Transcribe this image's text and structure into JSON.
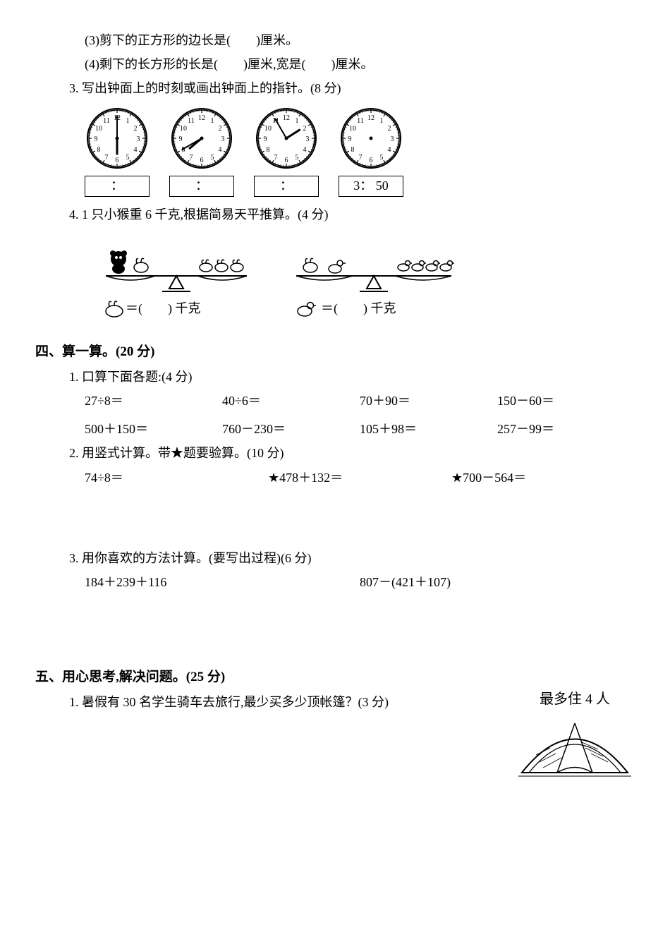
{
  "q3_3": "(3)剪下的正方形的边长是(　　)厘米。",
  "q3_4": "(4)剩下的长方形的长是(　　)厘米,宽是(　　)厘米。",
  "q3_head": "3. 写出钟面上的时刻或画出钟面上的指针。(8 分)",
  "clocks": [
    {
      "hour": 6,
      "minute": 0,
      "drawHands": true,
      "box": "："
    },
    {
      "hour": 7,
      "minute": 40,
      "drawHands": true,
      "box": "："
    },
    {
      "hour": 1,
      "minute": 55,
      "drawHands": true,
      "box": "："
    },
    {
      "hour": 3,
      "minute": 50,
      "drawHands": false,
      "box": "3： 50"
    }
  ],
  "q4_head": "4. 1 只小猴重 6 千克,根据简易天平推算。(4 分)",
  "balance": {
    "ans1_prefix": "🐰＝(　　) 千克",
    "ans2_prefix": "🦆＝(　　) 千克"
  },
  "sec4_head": "四、算一算。(20 分)",
  "s4q1_head": "1. 口算下面各题:(4 分)",
  "s4q1_items": [
    "27÷8＝",
    "40÷6＝",
    "70＋90＝",
    "150－60＝",
    "500＋150＝",
    "760－230＝",
    "105＋98＝",
    "257－99＝"
  ],
  "s4q2_head": "2. 用竖式计算。带★题要验算。(10 分)",
  "s4q2_items": [
    "74÷8＝",
    "★478＋132＝",
    "★700－564＝"
  ],
  "s4q3_head": "3. 用你喜欢的方法计算。(要写出过程)(6 分)",
  "s4q3_items": [
    "184＋239＋116",
    "807－(421＋107)"
  ],
  "sec5_head": "五、用心思考,解决问题。(25 分)",
  "s5q1": "1. 暑假有 30 名学生骑车去旅行,最少买多少顶帐篷？(3 分)",
  "tent_label": "最多住 4 人",
  "colors": {
    "text": "#000000",
    "bg": "#ffffff",
    "line": "#000000"
  }
}
